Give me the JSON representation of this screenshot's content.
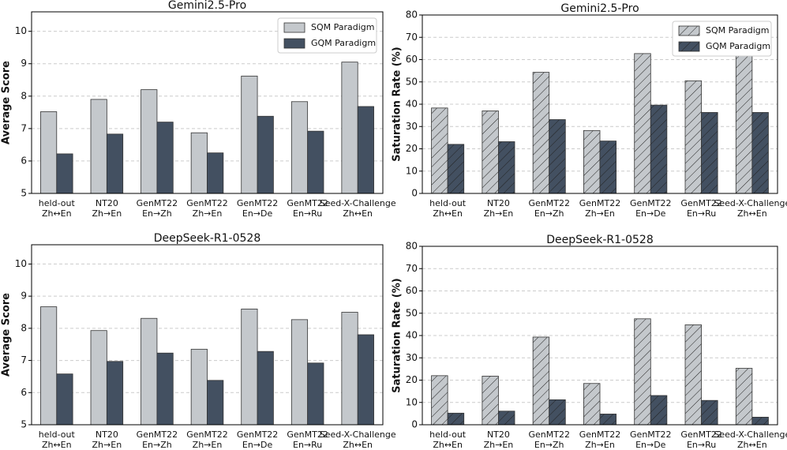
{
  "chart_data": [
    {
      "type": "bar",
      "title": "Gemini2.5-Pro",
      "ylabel": "Average Score",
      "categories": [
        [
          "held-out",
          "Zh↔En"
        ],
        [
          "NT20",
          "Zh→En"
        ],
        [
          "GenMT22",
          "En→Zh"
        ],
        [
          "GenMT22",
          "Zh→En"
        ],
        [
          "GenMT22",
          "En→De"
        ],
        [
          "GenMT22",
          "En→Ru"
        ],
        [
          "Seed-X-Challenge",
          "Zh↔En"
        ]
      ],
      "series": [
        {
          "name": "SQM Paradigm",
          "color": "#c4c8cc",
          "values": [
            7.52,
            7.9,
            8.2,
            6.87,
            8.62,
            7.83,
            9.05
          ]
        },
        {
          "name": "GQM Paradigm",
          "color": "#435061",
          "values": [
            6.22,
            6.83,
            7.2,
            6.25,
            7.38,
            6.92,
            7.68
          ]
        }
      ],
      "ylim": [
        5,
        10.6
      ],
      "yticks": [
        5,
        6,
        7,
        8,
        9,
        10
      ],
      "grid": true,
      "legend": "upper right"
    },
    {
      "type": "bar",
      "title": "Gemini2.5-Pro",
      "ylabel": "Saturation Rate (%)",
      "hatch": true,
      "categories": [
        [
          "held-out",
          "Zh↔En"
        ],
        [
          "NT20",
          "Zh→En"
        ],
        [
          "GenMT22",
          "En→Zh"
        ],
        [
          "GenMT22",
          "Zh→En"
        ],
        [
          "GenMT22",
          "En→De"
        ],
        [
          "GenMT22",
          "En→Ru"
        ],
        [
          "Seed-X-Challenge",
          "Zh↔En"
        ]
      ],
      "series": [
        {
          "name": "SQM Paradigm",
          "color": "#c4c8cc",
          "values": [
            38.3,
            37,
            54.3,
            28.2,
            62.7,
            50.5,
            64
          ]
        },
        {
          "name": "GQM Paradigm",
          "color": "#435061",
          "values": [
            22,
            23.2,
            33.1,
            23.5,
            39.6,
            36.3,
            36.3
          ]
        }
      ],
      "ylim": [
        0,
        80
      ],
      "yticks": [
        0,
        10,
        20,
        30,
        40,
        50,
        60,
        70,
        80
      ],
      "grid": true,
      "legend": "upper right"
    },
    {
      "type": "bar",
      "title": "DeepSeek-R1-0528",
      "ylabel": "Average Score",
      "categories": [
        [
          "held-out",
          "Zh↔En"
        ],
        [
          "NT20",
          "Zh→En"
        ],
        [
          "GenMT22",
          "En→Zh"
        ],
        [
          "GenMT22",
          "Zh→En"
        ],
        [
          "GenMT22",
          "En→De"
        ],
        [
          "GenMT22",
          "En→Ru"
        ],
        [
          "Seed-X-Challenge",
          "Zh↔En"
        ]
      ],
      "series": [
        {
          "color": "#c4c8cc",
          "values": [
            8.67,
            7.93,
            8.31,
            7.35,
            8.6,
            8.27,
            8.5
          ]
        },
        {
          "color": "#435061",
          "values": [
            6.58,
            6.97,
            7.23,
            6.38,
            7.28,
            6.92,
            7.8
          ]
        }
      ],
      "ylim": [
        5,
        10.6
      ],
      "yticks": [
        5,
        6,
        7,
        8,
        9,
        10
      ],
      "grid": true
    },
    {
      "type": "bar",
      "title": "DeepSeek-R1-0528",
      "ylabel": "Saturation Rate (%)",
      "hatch": true,
      "categories": [
        [
          "held-out",
          "Zh↔En"
        ],
        [
          "NT20",
          "Zh→En"
        ],
        [
          "GenMT22",
          "En→Zh"
        ],
        [
          "GenMT22",
          "Zh→En"
        ],
        [
          "GenMT22",
          "En→De"
        ],
        [
          "GenMT22",
          "En→Ru"
        ],
        [
          "Seed-X-Challenge",
          "Zh↔En"
        ]
      ],
      "series": [
        {
          "color": "#c4c8cc",
          "values": [
            22,
            21.8,
            39.3,
            18.5,
            47.5,
            44.8,
            25.3
          ]
        },
        {
          "color": "#435061",
          "values": [
            5.2,
            6.1,
            11.2,
            4.8,
            13.1,
            10.9,
            3.4
          ]
        }
      ],
      "ylim": [
        0,
        80
      ],
      "yticks": [
        0,
        10,
        20,
        30,
        40,
        50,
        60,
        70,
        80
      ],
      "grid": true
    }
  ]
}
